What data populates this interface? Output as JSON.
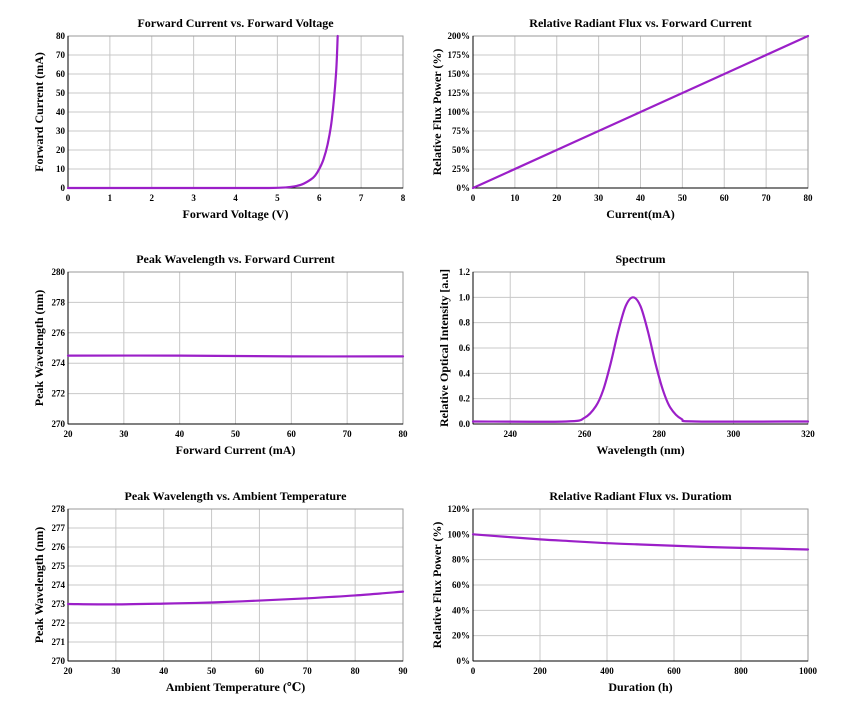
{
  "chart_data": [
    {
      "type": "line",
      "title": "Forward Current vs. Forward Voltage",
      "xlabel": "Forward Voltage (V)",
      "ylabel": "Forward Current (mA)",
      "xlim": [
        0,
        8
      ],
      "ylim": [
        0,
        80
      ],
      "xticks": [
        0,
        1,
        2,
        3,
        4,
        5,
        6,
        7,
        8
      ],
      "yticks": [
        0,
        10,
        20,
        30,
        40,
        50,
        60,
        70,
        80
      ],
      "grid": true,
      "series": [
        {
          "color": "#9b1fc8",
          "x": [
            0,
            1,
            2,
            3,
            4,
            4.8,
            5.2,
            5.4,
            5.6,
            5.8,
            5.9,
            6.0,
            6.1,
            6.2,
            6.3,
            6.4,
            6.44
          ],
          "y": [
            0,
            0,
            0,
            0,
            0,
            0,
            0.3,
            0.8,
            2,
            4.5,
            6.5,
            10,
            15,
            23,
            36,
            60,
            80
          ]
        }
      ]
    },
    {
      "type": "line",
      "title": "Relative Radiant Flux vs. Forward Current",
      "xlabel": "Current(mA)",
      "ylabel": "Relative Flux Power (%)",
      "xlim": [
        0,
        80
      ],
      "ylim": [
        0,
        200
      ],
      "xticks": [
        0,
        10,
        20,
        30,
        40,
        50,
        60,
        70,
        80
      ],
      "yticks": [
        0,
        25,
        50,
        75,
        100,
        125,
        150,
        175,
        200
      ],
      "ytick_format": "percent",
      "grid": true,
      "series": [
        {
          "color": "#9b1fc8",
          "x": [
            0,
            40,
            80
          ],
          "y": [
            0,
            100,
            200
          ]
        }
      ]
    },
    {
      "type": "line",
      "title": "Peak Wavelength vs. Forward Current",
      "xlabel": "Forward Current (mA)",
      "ylabel": "Peak Wavelength (nm)",
      "xlim": [
        20,
        80
      ],
      "ylim": [
        270,
        280
      ],
      "xticks": [
        20,
        30,
        40,
        50,
        60,
        70,
        80
      ],
      "yticks": [
        270,
        272,
        274,
        276,
        278,
        280
      ],
      "grid": true,
      "series": [
        {
          "color": "#9b1fc8",
          "x": [
            20,
            40,
            60,
            80
          ],
          "y": [
            274.5,
            274.5,
            274.45,
            274.45
          ]
        }
      ]
    },
    {
      "type": "line",
      "title": "Spectrum",
      "xlabel": "Wavelength (nm)",
      "ylabel": "Relative Optical Intensity [a.u]",
      "xlim": [
        230,
        320
      ],
      "ylim": [
        0,
        1.2
      ],
      "xticks": [
        240,
        260,
        280,
        300,
        320
      ],
      "yticks": [
        0.0,
        0.2,
        0.4,
        0.6,
        0.8,
        1.0,
        1.2
      ],
      "ytick_decimals": 1,
      "grid": true,
      "series": [
        {
          "color": "#9b1fc8",
          "x": [
            230,
            255,
            260,
            263,
            265,
            267,
            269,
            271,
            273,
            275,
            277,
            279,
            281,
            283,
            286,
            290,
            320
          ],
          "y": [
            0.02,
            0.02,
            0.05,
            0.14,
            0.27,
            0.48,
            0.73,
            0.93,
            1.0,
            0.93,
            0.73,
            0.48,
            0.27,
            0.13,
            0.04,
            0.02,
            0.02
          ]
        }
      ]
    },
    {
      "type": "line",
      "title": "Peak Wavelength vs. Ambient Temperature",
      "xlabel": "Ambient Temperature (℃)",
      "ylabel": "Peak Wavelength (nm)",
      "xlim": [
        20,
        90
      ],
      "ylim": [
        270,
        278
      ],
      "xticks": [
        20,
        30,
        40,
        50,
        60,
        70,
        80,
        90
      ],
      "yticks": [
        270,
        271,
        272,
        273,
        274,
        275,
        276,
        277,
        278
      ],
      "grid": true,
      "series": [
        {
          "color": "#9b1fc8",
          "x": [
            20,
            30,
            40,
            50,
            60,
            70,
            80,
            90
          ],
          "y": [
            273.0,
            272.98,
            273.02,
            273.08,
            273.18,
            273.3,
            273.45,
            273.65
          ]
        }
      ]
    },
    {
      "type": "line",
      "title": "Relative Radiant Flux vs. Duratiom",
      "xlabel": "Duration (h)",
      "ylabel": "Relative Flux Power (%)",
      "xlim": [
        0,
        1000
      ],
      "ylim": [
        0,
        120
      ],
      "xticks": [
        0,
        200,
        400,
        600,
        800,
        1000
      ],
      "yticks": [
        0,
        20,
        40,
        60,
        80,
        100,
        120
      ],
      "ytick_format": "percent",
      "grid": true,
      "series": [
        {
          "color": "#9b1fc8",
          "x": [
            0,
            100,
            200,
            300,
            400,
            500,
            600,
            700,
            800,
            900,
            1000
          ],
          "y": [
            100,
            98,
            96,
            94.5,
            93,
            92,
            91,
            90,
            89.3,
            88.7,
            88
          ]
        }
      ]
    }
  ]
}
